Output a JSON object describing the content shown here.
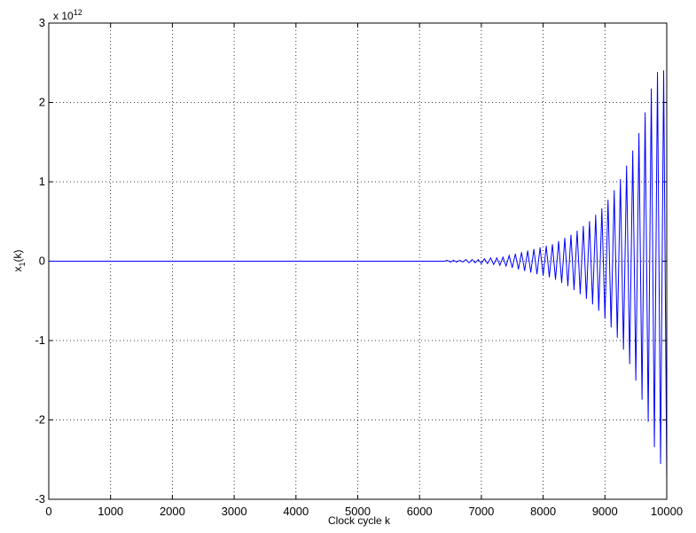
{
  "chart_data": {
    "type": "line",
    "xlabel": "Clock cycle k",
    "ylabel": {
      "base": "x",
      "subscript": "1",
      "suffix": "(k)"
    },
    "y_exponent": {
      "base": "x 10",
      "power": "12"
    },
    "xlim": [
      0,
      10000
    ],
    "ylim": [
      -3,
      3
    ],
    "x_ticks": [
      0,
      1000,
      2000,
      3000,
      4000,
      5000,
      6000,
      7000,
      8000,
      9000,
      10000
    ],
    "x_tick_labels": [
      "0",
      "1000",
      "2000",
      "3000",
      "4000",
      "5000",
      "6000",
      "7000",
      "8000",
      "9000",
      "10000"
    ],
    "y_ticks": [
      -3,
      -2,
      -1,
      0,
      1,
      2,
      3
    ],
    "y_tick_labels": [
      "-3",
      "-2",
      "-1",
      "0",
      "1",
      "2",
      "3"
    ],
    "grid": true,
    "grid_style": "dotted",
    "series": [
      {
        "color": "#0000ff",
        "envelope_peaks_x": [
          6400,
          7000,
          7500,
          8000,
          8500,
          9000,
          9200,
          9400,
          9600,
          9800,
          9950,
          10000
        ],
        "envelope_peaks_y": [
          0.0,
          0.02,
          0.05,
          0.12,
          0.25,
          0.48,
          0.66,
          1.05,
          1.45,
          1.8,
          2.38,
          2.4
        ],
        "x": [
          6400,
          6450,
          6500,
          6550,
          6600,
          6650,
          6700,
          6750,
          6800,
          6850,
          6900,
          6950,
          7000,
          7050,
          7100,
          7150,
          7200,
          7250,
          7300,
          7350,
          7400,
          7450,
          7500,
          7550,
          7600,
          7650,
          7700,
          7750,
          7800,
          7850,
          7900,
          7950,
          8000,
          8050,
          8100,
          8150,
          8200,
          8250,
          8300,
          8350,
          8400,
          8450,
          8500,
          8550,
          8600,
          8650,
          8700,
          8750,
          8800,
          8850,
          8900,
          8950,
          9000,
          9050,
          9100,
          9150,
          9200,
          9250,
          9300,
          9350,
          9400,
          9450,
          9500,
          9550,
          9600,
          9650,
          9700,
          9750,
          9800,
          9850,
          9900,
          9950,
          10000
        ],
        "y": [
          0.0,
          0.01,
          -0.01,
          0.01,
          -0.01,
          0.01,
          -0.01,
          0.02,
          -0.02,
          0.02,
          -0.02,
          0.02,
          -0.03,
          0.03,
          -0.03,
          0.04,
          -0.04,
          0.04,
          -0.05,
          0.05,
          -0.06,
          0.07,
          -0.08,
          0.09,
          -0.1,
          0.11,
          -0.12,
          0.13,
          -0.14,
          0.15,
          -0.16,
          0.17,
          -0.18,
          0.19,
          -0.2,
          0.21,
          -0.23,
          0.25,
          -0.27,
          0.29,
          -0.31,
          0.33,
          -0.36,
          0.38,
          -0.41,
          0.44,
          -0.47,
          0.5,
          -0.54,
          0.58,
          -0.62,
          0.66,
          -0.72,
          0.77,
          -0.83,
          0.89,
          -0.96,
          1.03,
          -1.11,
          1.2,
          -1.29,
          1.39,
          -1.5,
          1.61,
          -1.74,
          1.87,
          -2.02,
          2.17,
          -2.34,
          2.38,
          -2.55,
          2.4,
          -2.75
        ]
      }
    ]
  }
}
